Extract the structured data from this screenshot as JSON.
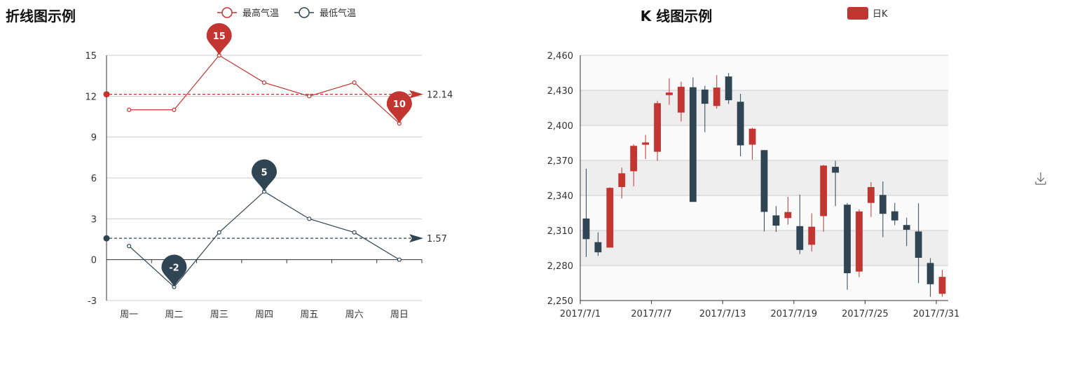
{
  "chart_data": [
    {
      "type": "line",
      "title": "折线图示例",
      "categories": [
        "周一",
        "周二",
        "周三",
        "周四",
        "周五",
        "周六",
        "周日"
      ],
      "ylim": [
        -3,
        15
      ],
      "yticks": [
        "15",
        "12",
        "9",
        "6",
        "3",
        "0",
        "-3"
      ],
      "legend_position": "top",
      "grid": true,
      "series": [
        {
          "name": "最高气温",
          "color": "#c23531",
          "values": [
            11,
            11,
            15,
            13,
            12,
            13,
            10
          ],
          "max_marker": {
            "index": 2,
            "label": "15"
          },
          "min_marker": {
            "index": 6,
            "label": "10"
          },
          "average": {
            "value": 12.14,
            "label": "12.14"
          }
        },
        {
          "name": "最低气温",
          "color": "#2f4554",
          "values": [
            1,
            -2,
            2,
            5,
            3,
            2,
            0
          ],
          "max_marker": {
            "index": 3,
            "label": "5"
          },
          "min_marker": {
            "index": 1,
            "label": "-2"
          },
          "average": {
            "value": 1.57,
            "label": "1.57"
          }
        }
      ]
    },
    {
      "type": "candlestick",
      "title": "K 线图示例",
      "series_name": "日K",
      "up_color": "#c23531",
      "down_color": "#2f4554",
      "ylim": [
        2250,
        2460
      ],
      "yticks": [
        "2,460",
        "2,430",
        "2,400",
        "2,370",
        "2,340",
        "2,310",
        "2,280",
        "2,250"
      ],
      "xtick_labels": [
        "2017/7/1",
        "2017/7/7",
        "2017/7/13",
        "2017/7/19",
        "2017/7/25",
        "2017/7/31"
      ],
      "grid": true,
      "candles": [
        {
          "open": 2320.26,
          "close": 2302.6,
          "low": 2287.3,
          "high": 2362.94
        },
        {
          "open": 2300,
          "close": 2291.3,
          "low": 2288.26,
          "high": 2308.38
        },
        {
          "open": 2295.35,
          "close": 2346.5,
          "low": 2295.35,
          "high": 2346.92
        },
        {
          "open": 2347.22,
          "close": 2358.98,
          "low": 2337.35,
          "high": 2363.8
        },
        {
          "open": 2360.75,
          "close": 2382.48,
          "low": 2347.89,
          "high": 2383.76
        },
        {
          "open": 2383.43,
          "close": 2385.42,
          "low": 2371.23,
          "high": 2391.82
        },
        {
          "open": 2377.41,
          "close": 2419.02,
          "low": 2369.57,
          "high": 2421.15
        },
        {
          "open": 2425.92,
          "close": 2428.15,
          "low": 2417.58,
          "high": 2440.38
        },
        {
          "open": 2411,
          "close": 2433.13,
          "low": 2403.3,
          "high": 2437.42
        },
        {
          "open": 2432.68,
          "close": 2334.48,
          "low": 2334.48,
          "high": 2441.09
        },
        {
          "open": 2430.69,
          "close": 2418.53,
          "low": 2394.22,
          "high": 2433.89
        },
        {
          "open": 2416.62,
          "close": 2432.4,
          "low": 2414.4,
          "high": 2443.03
        },
        {
          "open": 2441.91,
          "close": 2421.56,
          "low": 2418.43,
          "high": 2444.8
        },
        {
          "open": 2420.26,
          "close": 2382.91,
          "low": 2373.53,
          "high": 2427.07
        },
        {
          "open": 2383.49,
          "close": 2397.18,
          "low": 2370.61,
          "high": 2397.94
        },
        {
          "open": 2378.82,
          "close": 2325.95,
          "low": 2309.17,
          "high": 2378.82
        },
        {
          "open": 2322.94,
          "close": 2314.16,
          "low": 2308.76,
          "high": 2330.88
        },
        {
          "open": 2320.62,
          "close": 2325.82,
          "low": 2315.01,
          "high": 2338.78
        },
        {
          "open": 2313.74,
          "close": 2293.34,
          "low": 2289.89,
          "high": 2340.71
        },
        {
          "open": 2297.77,
          "close": 2313.22,
          "low": 2292.03,
          "high": 2324.63
        },
        {
          "open": 2322.32,
          "close": 2365.59,
          "low": 2308.92,
          "high": 2366.16
        },
        {
          "open": 2364.54,
          "close": 2359.51,
          "low": 2330.86,
          "high": 2369.65
        },
        {
          "open": 2332.08,
          "close": 2273.4,
          "low": 2259.25,
          "high": 2333.54
        },
        {
          "open": 2274.81,
          "close": 2326.31,
          "low": 2270.1,
          "high": 2328.14
        },
        {
          "open": 2333.61,
          "close": 2347.18,
          "low": 2321.6,
          "high": 2351.44
        },
        {
          "open": 2340.44,
          "close": 2324.29,
          "low": 2304.27,
          "high": 2352.02
        },
        {
          "open": 2326.42,
          "close": 2318.61,
          "low": 2314.59,
          "high": 2333.67
        },
        {
          "open": 2314.68,
          "close": 2310.59,
          "low": 2296.58,
          "high": 2320.96
        },
        {
          "open": 2309.16,
          "close": 2286.6,
          "low": 2264.83,
          "high": 2333.29
        },
        {
          "open": 2282.17,
          "close": 2263.97,
          "low": 2253.25,
          "high": 2286.33
        },
        {
          "open": 2255.77,
          "close": 2270.28,
          "low": 2253.31,
          "high": 2276.22
        }
      ]
    }
  ],
  "toolbox": {
    "icon": "download-icon"
  }
}
